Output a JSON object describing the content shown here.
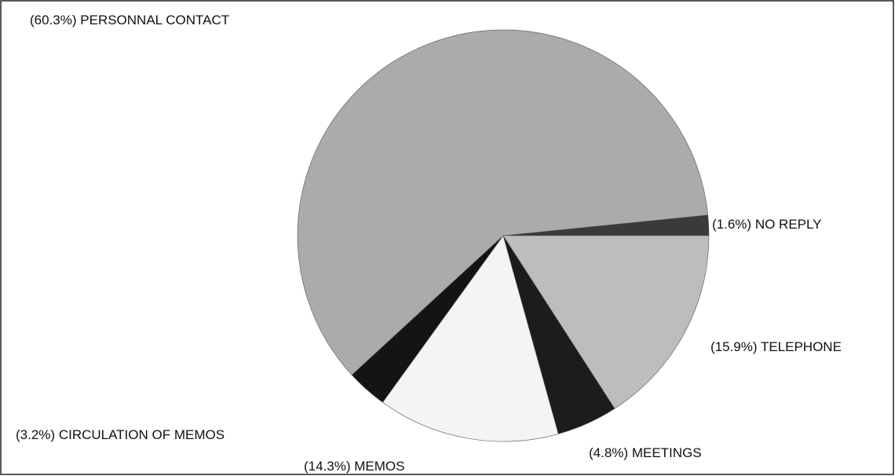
{
  "chart_data": {
    "type": "pie",
    "categories": [
      "NO REPLY",
      "PERSONNAL CONTACT",
      "CIRCULATION OF MEMOS",
      "MEMOS",
      "MEETINGS",
      "TELEPHONE"
    ],
    "values": [
      1.6,
      60.3,
      3.2,
      14.3,
      4.8,
      15.9
    ],
    "value_labels": [
      "(1.6%)",
      "(60.3%)",
      "(3.2%)",
      "(14.3%)",
      "(4.8%)",
      "(15.9%)"
    ],
    "colors": [
      "#3a3a3a",
      "#ababab",
      "#141414",
      "#f4f4f4",
      "#1c1c1c",
      "#bdbdbd"
    ]
  }
}
